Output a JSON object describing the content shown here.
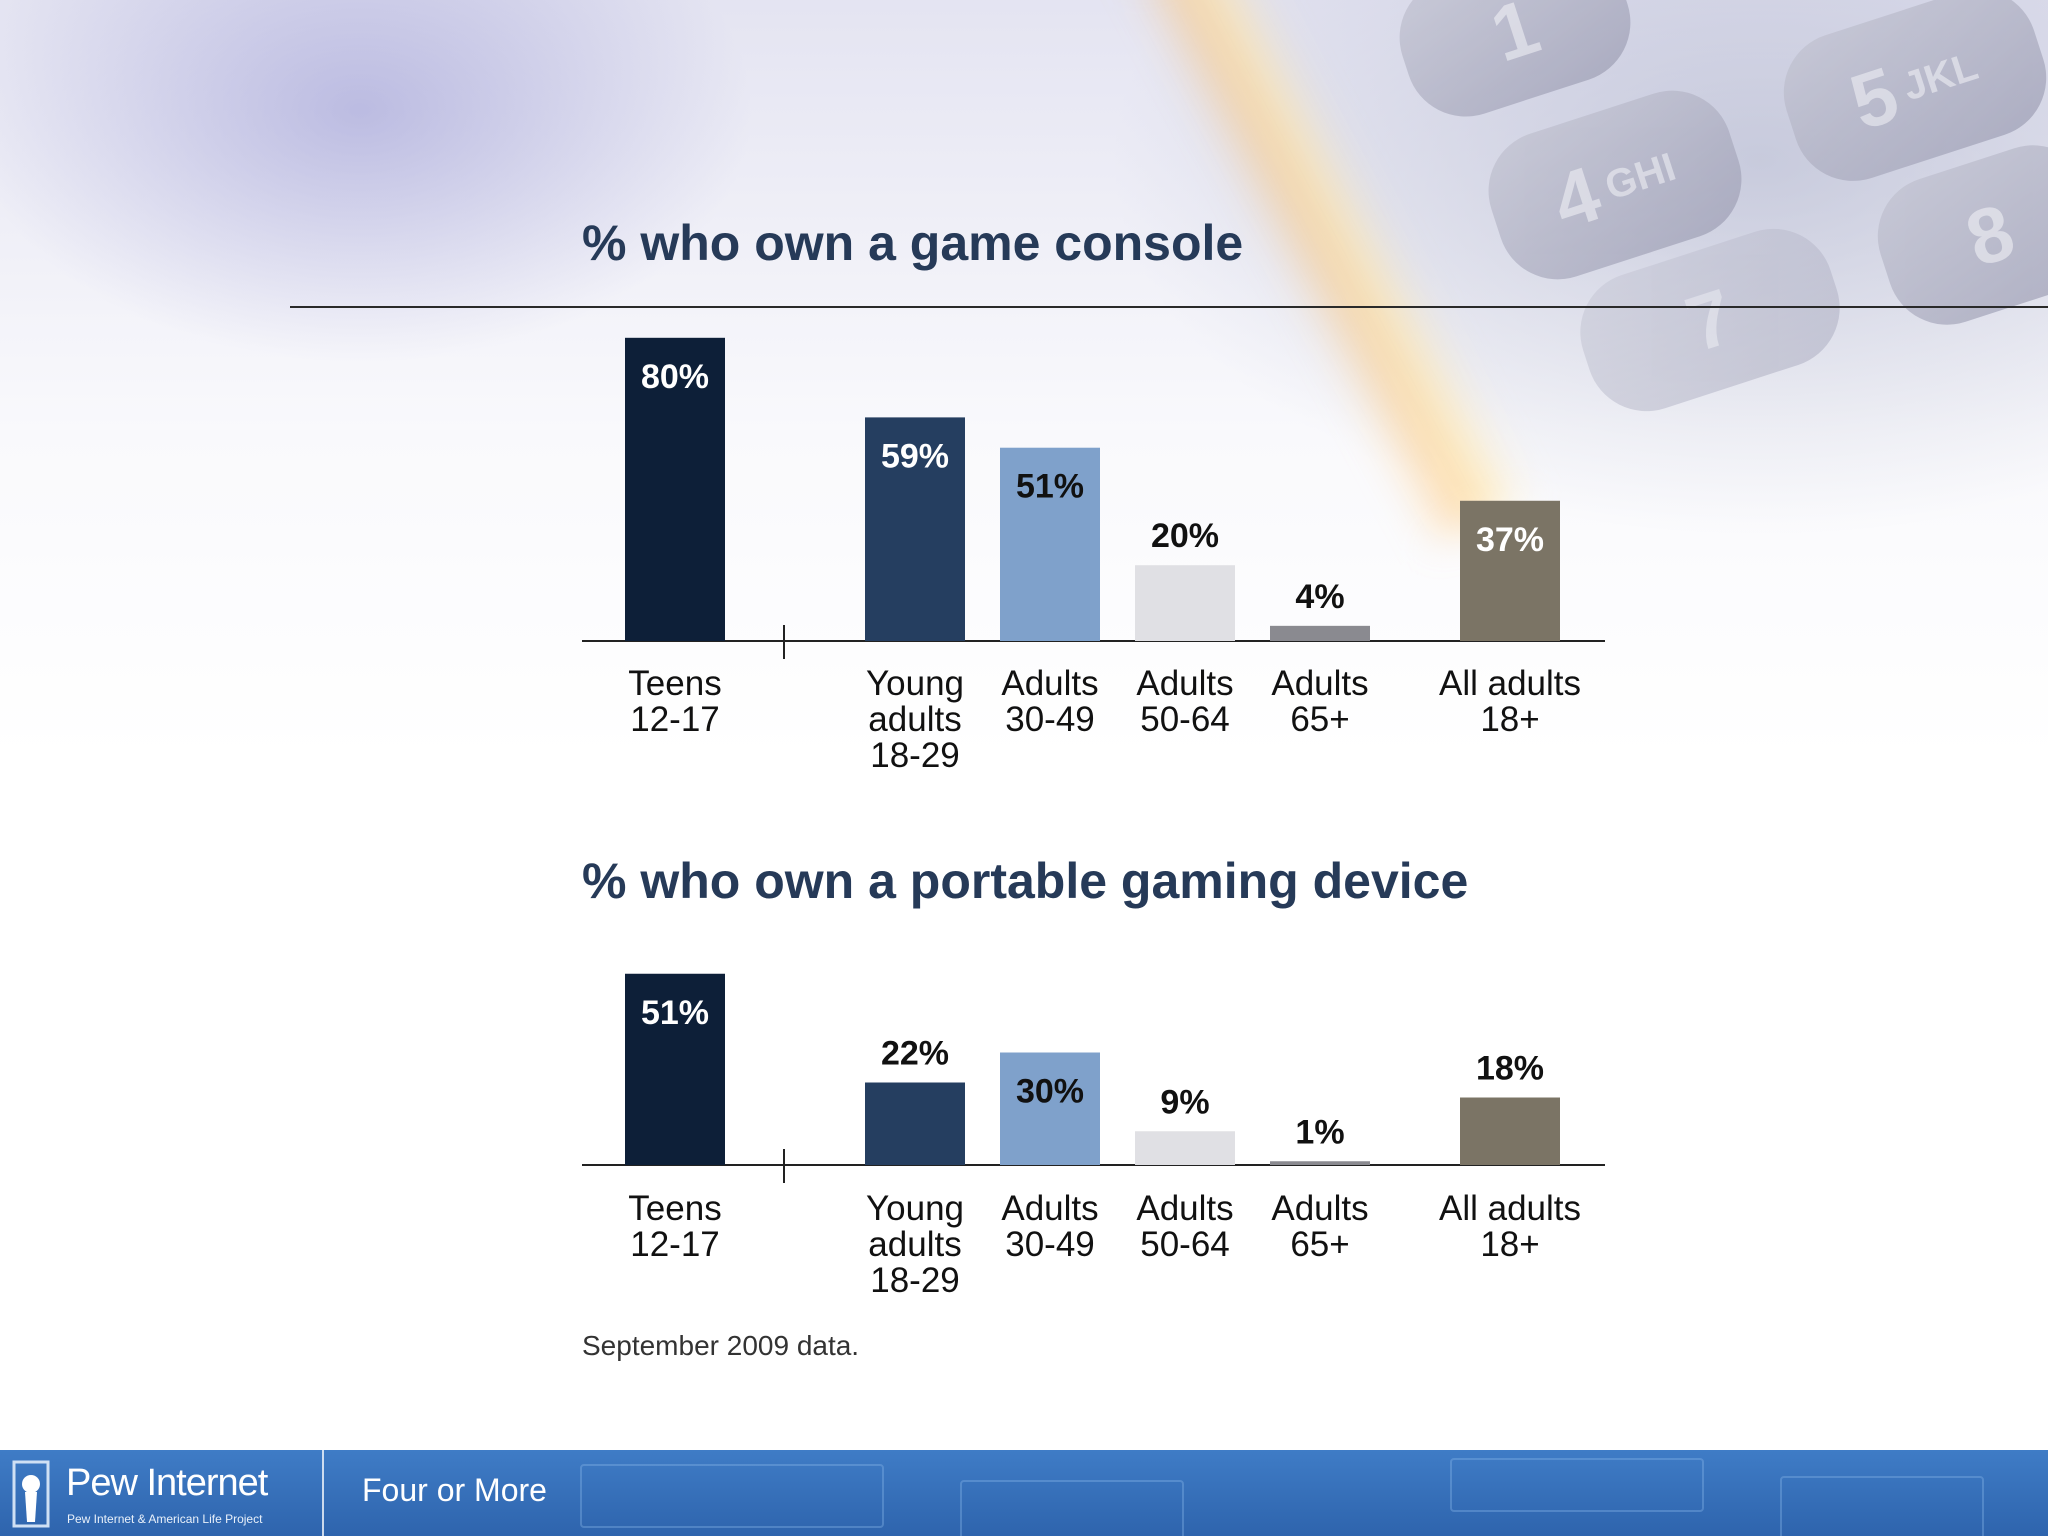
{
  "slide": {
    "footer_note": "September 2009 data.",
    "footer_section": "Four or More",
    "logo": {
      "name": "Pew Internet",
      "tagline": "Pew Internet & American Life Project"
    }
  },
  "background_keys": [
    "1",
    "5",
    "JKL",
    "4",
    "GHI",
    "8",
    "7"
  ],
  "colors": {
    "teens": "#0d1f38",
    "young_adults": "#253e60",
    "adults_30_49": "#7fa1cb",
    "adults_50_64": "#e0e0e4",
    "adults_65": "#8a8a90",
    "all_adults": "#7b7465",
    "title": "#263a58",
    "footer": "#3370b8"
  },
  "chart_data": [
    {
      "type": "bar",
      "title": "% who own a game console",
      "categories": [
        [
          "Teens",
          "12-17"
        ],
        [
          "Young",
          "adults",
          "18-29"
        ],
        [
          "Adults",
          "30-49"
        ],
        [
          "Adults",
          "50-64"
        ],
        [
          "Adults",
          "65+"
        ],
        [
          "All adults",
          "18+"
        ]
      ],
      "values": [
        80,
        59,
        51,
        20,
        4,
        37
      ],
      "value_labels": [
        "80%",
        "59%",
        "51%",
        "20%",
        "4%",
        "37%"
      ],
      "ylim": [
        0,
        100
      ],
      "grid": false,
      "xlabel": "",
      "ylabel": ""
    },
    {
      "type": "bar",
      "title": "% who own a portable gaming device",
      "categories": [
        [
          "Teens",
          "12-17"
        ],
        [
          "Young",
          "adults",
          "18-29"
        ],
        [
          "Adults",
          "30-49"
        ],
        [
          "Adults",
          "50-64"
        ],
        [
          "Adults",
          "65+"
        ],
        [
          "All adults",
          "18+"
        ]
      ],
      "values": [
        51,
        22,
        30,
        9,
        1,
        18
      ],
      "value_labels": [
        "51%",
        "22%",
        "30%",
        "9%",
        "1%",
        "18%"
      ],
      "ylim": [
        0,
        100
      ],
      "grid": false,
      "xlabel": "",
      "ylabel": ""
    }
  ]
}
